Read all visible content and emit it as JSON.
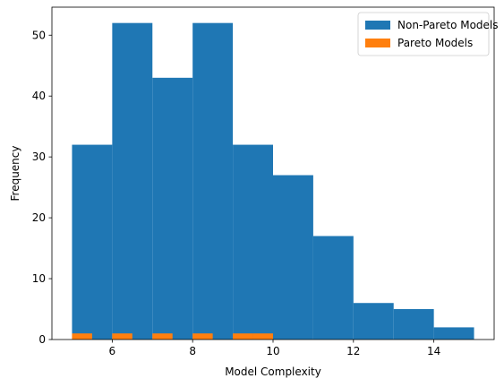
{
  "chart_data": {
    "type": "bar",
    "xlabel": "Model Complexity",
    "ylabel": "Frequency",
    "xlim": [
      4.5,
      15.5
    ],
    "ylim": [
      0,
      54.6
    ],
    "xticks": [
      6,
      8,
      10,
      12,
      14
    ],
    "yticks": [
      0,
      10,
      20,
      30,
      40,
      50
    ],
    "grid": false,
    "legend_placement": "top-right",
    "series": [
      {
        "name": "Non-Pareto Models",
        "color": "#1f77b4",
        "bins": [
          {
            "x0": 5,
            "x1": 6,
            "value": 32
          },
          {
            "x0": 6,
            "x1": 7,
            "value": 52
          },
          {
            "x0": 7,
            "x1": 8,
            "value": 43
          },
          {
            "x0": 8,
            "x1": 9,
            "value": 52
          },
          {
            "x0": 9,
            "x1": 10,
            "value": 32
          },
          {
            "x0": 10,
            "x1": 11,
            "value": 27
          },
          {
            "x0": 11,
            "x1": 12,
            "value": 17
          },
          {
            "x0": 12,
            "x1": 13,
            "value": 6
          },
          {
            "x0": 13,
            "x1": 14,
            "value": 5
          },
          {
            "x0": 14,
            "x1": 15,
            "value": 2
          }
        ]
      },
      {
        "name": "Pareto Models",
        "color": "#ff7f0e",
        "bins": [
          {
            "x0": 5.0,
            "x1": 5.5,
            "value": 1
          },
          {
            "x0": 5.5,
            "x1": 6.0,
            "value": 0
          },
          {
            "x0": 6.0,
            "x1": 6.5,
            "value": 1
          },
          {
            "x0": 6.5,
            "x1": 7.0,
            "value": 0
          },
          {
            "x0": 7.0,
            "x1": 7.5,
            "value": 1
          },
          {
            "x0": 7.5,
            "x1": 8.0,
            "value": 0
          },
          {
            "x0": 8.0,
            "x1": 8.5,
            "value": 1
          },
          {
            "x0": 8.5,
            "x1": 9.0,
            "value": 0
          },
          {
            "x0": 9.0,
            "x1": 9.5,
            "value": 1
          },
          {
            "x0": 9.5,
            "x1": 10.0,
            "value": 1
          }
        ]
      }
    ]
  }
}
